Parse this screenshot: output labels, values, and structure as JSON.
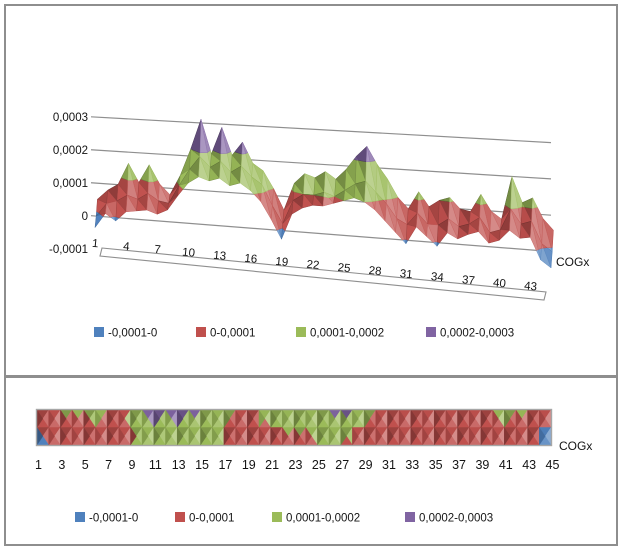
{
  "page": {
    "background": "#ffffff",
    "frame_border_color": "#8e8e8e"
  },
  "chart_data": {
    "type": "area",
    "subtype": "excel-3d-surface-and-contour",
    "axis_label": "COGx",
    "bands": [
      {
        "label": "-0,0001-0",
        "min": -0.0001,
        "max": 0.0,
        "color": "#4F81BD"
      },
      {
        "label": "0-0,0001",
        "min": 0.0,
        "max": 0.0001,
        "color": "#C0504D"
      },
      {
        "label": "0,0001-0,0002",
        "min": 0.0001,
        "max": 0.0002,
        "color": "#9BBB59"
      },
      {
        "label": "0,0002-0,0003",
        "min": 0.0002,
        "max": 0.0003,
        "color": "#8064A2"
      }
    ],
    "rows": {
      "back": [
        3e-05,
        6e-05,
        8e-05,
        0.000145,
        9e-05,
        0.000145,
        9e-05,
        6e-05,
        0.00012,
        0.0002,
        0.00029,
        0.00019,
        0.00027,
        0.00019,
        0.00023,
        0.00017,
        0.00015,
        0.0001,
        4e-05,
        0.00012,
        0.00015,
        0.00014,
        0.00016,
        0.00014,
        0.00017,
        0.00021,
        0.00024,
        0.00019,
        0.00015,
        0.0001,
        7e-05,
        0.00012,
        8e-05,
        0.0001,
        0.00011,
        8e-05,
        7.5e-05,
        0.000125,
        8e-05,
        6e-05,
        0.00018,
        0.00011,
        0.000125,
        7e-05,
        4e-05
      ],
      "middle": [
        -1e-05,
        3e-05,
        4e-05,
        6e-05,
        5e-05,
        7e-05,
        5e-05,
        4.5e-05,
        0.0001,
        0.00015,
        0.00019,
        0.00016,
        0.00018,
        0.00015,
        0.00017,
        0.00014,
        0.00012,
        6e-05,
        1e-05,
        8e-05,
        0.0001,
        0.0001,
        0.00011,
        0.0001,
        0.00012,
        0.00014,
        0.00015,
        0.00012,
        9e-05,
        5e-05,
        3.5e-05,
        7e-05,
        4e-05,
        4e-05,
        6e-05,
        4e-05,
        5e-05,
        7e-05,
        3e-05,
        4e-05,
        0.0001,
        6e-05,
        7e-05,
        1e-05,
        -1e-05
      ],
      "front": [
        -3.5e-05,
        1e-05,
        -1e-05,
        2e-05,
        2.5e-05,
        3e-05,
        2e-05,
        3.5e-05,
        8e-05,
        0.00012,
        0.00014,
        0.00013,
        0.00014,
        0.00012,
        0.00013,
        0.00011,
        8e-05,
        3e-05,
        -2.5e-05,
        5e-05,
        7e-05,
        8e-05,
        8e-05,
        9e-05,
        0.0001,
        0.00011,
        0.0001,
        8e-05,
        5e-05,
        2e-05,
        -1e-05,
        4e-05,
        1.5e-05,
        -1e-05,
        3e-05,
        1.5e-05,
        3e-05,
        4e-05,
        1e-05,
        2e-05,
        5e-05,
        3e-05,
        3.5e-05,
        -2.5e-05,
        -4.5e-05
      ]
    },
    "views": [
      {
        "name": "surface-3d",
        "y_ticks": [
          "0,0003",
          "0,0002",
          "0,0001",
          "0",
          "-0,0001"
        ],
        "x_ticks": [
          1,
          4,
          7,
          10,
          13,
          16,
          19,
          22,
          25,
          28,
          31,
          34,
          37,
          40,
          43
        ],
        "axis_label": "COGx",
        "ylim": [
          -0.0001,
          0.0003
        ],
        "grid": true,
        "legend_position": "bottom"
      },
      {
        "name": "surface-contour-top-view",
        "x_ticks": [
          1,
          3,
          5,
          7,
          9,
          11,
          13,
          15,
          17,
          19,
          21,
          23,
          25,
          27,
          29,
          31,
          33,
          35,
          37,
          39,
          41,
          43,
          45
        ],
        "axis_label": "COGx",
        "grid": false,
        "legend_position": "bottom"
      }
    ]
  }
}
